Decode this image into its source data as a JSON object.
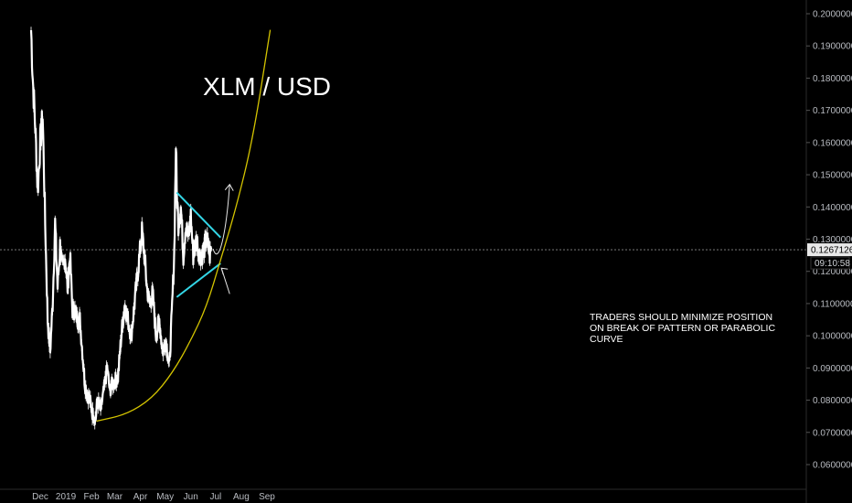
{
  "chart_data": {
    "type": "line",
    "title": "XLM / USD",
    "xlabel": "",
    "ylabel": "",
    "ylim": [
      0.0555,
      0.2055
    ],
    "grid": false,
    "legend": "none",
    "y_ticks": [
      "0.2000000",
      "0.1900000",
      "0.1800000",
      "0.1700000",
      "0.1600000",
      "0.1500000",
      "0.1400000",
      "0.1300000",
      "0.1200000",
      "0.1100000",
      "0.1000000",
      "0.0900000",
      "0.0800000",
      "0.0700000",
      "0.0600000"
    ],
    "x_ticks": [
      "Dec",
      "2019",
      "Feb",
      "Mar",
      "Apr",
      "May",
      "Jun",
      "Jul",
      "Aug",
      "Sep"
    ],
    "current_price": "0.1267126",
    "countdown": "09:10:58",
    "annotation": [
      "TRADERS SHOULD MINIMIZE POSITION",
      "ON BREAK OF PATTERN OR PARABOLIC",
      "CURVE"
    ],
    "series": [
      {
        "values_description": "price",
        "x": [
          "2018-11-20",
          "2018-11-22",
          "2018-11-25",
          "2018-11-28",
          "2018-12-01",
          "2018-12-04",
          "2018-12-07",
          "2018-12-10",
          "2018-12-13",
          "2018-12-16",
          "2018-12-19",
          "2018-12-22",
          "2018-12-25",
          "2018-12-28",
          "2018-12-31",
          "2019-01-03",
          "2019-01-06",
          "2019-01-09",
          "2019-01-12",
          "2019-01-15",
          "2019-01-18",
          "2019-01-21",
          "2019-01-24",
          "2019-01-27",
          "2019-01-30",
          "2019-02-02",
          "2019-02-06",
          "2019-02-08",
          "2019-02-12",
          "2019-02-16",
          "2019-02-20",
          "2019-02-23",
          "2019-02-26",
          "2019-03-01",
          "2019-03-05",
          "2019-03-09",
          "2019-03-13",
          "2019-03-17",
          "2019-03-21",
          "2019-03-25",
          "2019-03-29",
          "2019-04-03",
          "2019-04-06",
          "2019-04-09",
          "2019-04-12",
          "2019-04-16",
          "2019-04-20",
          "2019-04-24",
          "2019-04-28",
          "2019-05-02",
          "2019-05-06",
          "2019-05-09",
          "2019-05-12",
          "2019-05-14",
          "2019-05-15",
          "2019-05-17",
          "2019-05-20",
          "2019-05-23",
          "2019-05-26",
          "2019-05-29",
          "2019-06-01",
          "2019-06-04",
          "2019-06-08",
          "2019-06-12",
          "2019-06-16",
          "2019-06-20",
          "2019-06-24",
          "2019-06-26"
        ],
        "values": [
          0.195,
          0.18,
          0.165,
          0.145,
          0.16,
          0.168,
          0.135,
          0.105,
          0.095,
          0.11,
          0.135,
          0.115,
          0.128,
          0.12,
          0.125,
          0.115,
          0.125,
          0.108,
          0.108,
          0.105,
          0.105,
          0.095,
          0.085,
          0.082,
          0.08,
          0.076,
          0.074,
          0.08,
          0.077,
          0.083,
          0.09,
          0.083,
          0.085,
          0.086,
          0.087,
          0.1,
          0.11,
          0.105,
          0.1,
          0.11,
          0.12,
          0.132,
          0.125,
          0.115,
          0.11,
          0.113,
          0.1,
          0.105,
          0.095,
          0.099,
          0.09,
          0.106,
          0.126,
          0.16,
          0.145,
          0.135,
          0.14,
          0.125,
          0.135,
          0.13,
          0.137,
          0.125,
          0.13,
          0.125,
          0.126,
          0.13,
          0.125,
          0.127
        ]
      },
      {
        "name": "",
        "kind": "triangle-upper",
        "x": [
          "2019-05-15",
          "2019-07-07"
        ],
        "values": [
          0.1445,
          0.1305
        ]
      },
      {
        "name": "",
        "kind": "triangle-lower",
        "x": [
          "2019-05-15",
          "2019-07-07"
        ],
        "values": [
          0.112,
          0.1225
        ]
      },
      {
        "name": "",
        "kind": "parabolic-curve",
        "x": [
          "2019-02-07",
          "2019-03-15",
          "2019-04-15",
          "2019-05-10",
          "2019-06-01",
          "2019-06-20",
          "2019-07-07",
          "2019-07-25",
          "2019-08-15",
          "2019-09-05"
        ],
        "values": [
          0.0735,
          0.0755,
          0.0805,
          0.0885,
          0.0985,
          0.109,
          0.1235,
          0.139,
          0.161,
          0.195
        ]
      },
      {
        "name": "",
        "kind": "projection-arrow",
        "x": [
          "2019-06-28",
          "2019-07-05",
          "2019-07-14",
          "2019-07-18"
        ],
        "values": [
          0.127,
          0.124,
          0.135,
          0.147
        ]
      },
      {
        "name": "",
        "kind": "annotation-pointer",
        "x": [
          "2019-07-18",
          "2019-07-08"
        ],
        "values": [
          0.113,
          0.121
        ]
      }
    ]
  },
  "colors": {
    "background": "#000000",
    "price": "#ffffff",
    "triangle": "#33d6e6",
    "curve": "#d4c400",
    "axis_text": "#b9bcc2",
    "crosshair": "#8a8a8a"
  }
}
